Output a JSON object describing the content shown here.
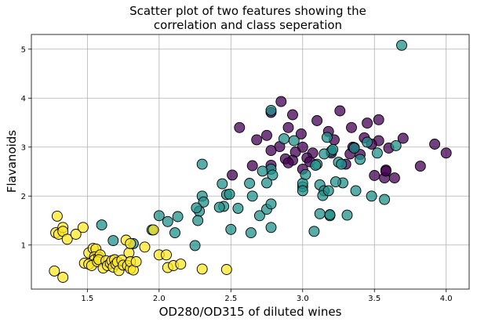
{
  "chart_data": {
    "type": "scatter",
    "title_line1": "Scatter plot of two features showing the",
    "title_line2": "correlation and class seperation",
    "xlabel": "OD280/OD315 of diluted wines",
    "ylabel": "Flavanoids",
    "xlim": [
      1.11,
      4.16
    ],
    "ylim": [
      0.1,
      5.3
    ],
    "xticks": [
      1.5,
      2.0,
      2.5,
      3.0,
      3.5,
      4.0
    ],
    "xtick_labels": [
      "1.5",
      "2.0",
      "2.5",
      "3.0",
      "3.5",
      "4.0"
    ],
    "yticks": [
      1,
      2,
      3,
      4,
      5
    ],
    "ytick_labels": [
      "1",
      "2",
      "3",
      "4",
      "5"
    ],
    "grid": true,
    "colors": {
      "class0": "#440154",
      "class1": "#21918c",
      "class2": "#fde725"
    },
    "series": [
      {
        "color": "#440154",
        "points": [
          [
            2.85,
            3.93
          ],
          [
            2.93,
            3.66
          ],
          [
            2.78,
            3.71
          ],
          [
            3.26,
            3.74
          ],
          [
            3.53,
            3.56
          ],
          [
            3.1,
            3.54
          ],
          [
            2.56,
            3.4
          ],
          [
            2.9,
            3.4
          ],
          [
            3.34,
            3.4
          ],
          [
            3.45,
            3.49
          ],
          [
            2.99,
            3.27
          ],
          [
            3.18,
            3.32
          ],
          [
            2.75,
            3.24
          ],
          [
            2.68,
            3.15
          ],
          [
            3.22,
            3.15
          ],
          [
            3.43,
            3.19
          ],
          [
            3.53,
            3.13
          ],
          [
            3.48,
            3.06
          ],
          [
            3.7,
            3.18
          ],
          [
            3.92,
            3.06
          ],
          [
            2.84,
            3.01
          ],
          [
            3.0,
            3.0
          ],
          [
            3.35,
            3.0
          ],
          [
            3.6,
            2.98
          ],
          [
            3.2,
            2.88
          ],
          [
            2.78,
            2.93
          ],
          [
            2.95,
            2.9
          ],
          [
            3.07,
            2.88
          ],
          [
            3.36,
            2.99
          ],
          [
            2.88,
            2.76
          ],
          [
            2.93,
            2.73
          ],
          [
            3.03,
            2.78
          ],
          [
            3.33,
            2.86
          ],
          [
            2.9,
            2.68
          ],
          [
            3.05,
            2.7
          ],
          [
            3.0,
            2.55
          ],
          [
            2.78,
            2.63
          ],
          [
            2.65,
            2.62
          ],
          [
            3.3,
            2.65
          ],
          [
            3.4,
            2.85
          ],
          [
            3.58,
            2.53
          ],
          [
            3.57,
            2.37
          ],
          [
            3.64,
            2.37
          ],
          [
            3.5,
            2.42
          ],
          [
            3.82,
            2.61
          ],
          [
            4.0,
            2.88
          ],
          [
            2.51,
            2.43
          ],
          [
            3.58,
            2.51
          ]
        ]
      },
      {
        "color": "#21918c",
        "points": [
          [
            3.69,
            5.08
          ],
          [
            2.78,
            3.75
          ],
          [
            2.87,
            3.17
          ],
          [
            2.94,
            3.13
          ],
          [
            3.17,
            3.2
          ],
          [
            3.65,
            3.03
          ],
          [
            3.45,
            3.1
          ],
          [
            3.52,
            2.88
          ],
          [
            3.36,
            2.98
          ],
          [
            3.2,
            2.92
          ],
          [
            3.15,
            2.86
          ],
          [
            3.25,
            2.69
          ],
          [
            3.4,
            2.75
          ],
          [
            3.27,
            2.65
          ],
          [
            3.1,
            2.65
          ],
          [
            2.78,
            2.55
          ],
          [
            2.72,
            2.51
          ],
          [
            2.79,
            2.43
          ],
          [
            2.75,
            2.27
          ],
          [
            2.65,
            2.0
          ],
          [
            2.7,
            1.6
          ],
          [
            2.75,
            1.73
          ],
          [
            2.78,
            1.84
          ],
          [
            2.63,
            2.26
          ],
          [
            2.55,
            1.75
          ],
          [
            2.47,
            2.03
          ],
          [
            2.49,
            2.04
          ],
          [
            2.45,
            1.79
          ],
          [
            2.42,
            1.77
          ],
          [
            2.44,
            2.25
          ],
          [
            2.3,
            2.65
          ],
          [
            2.3,
            2.0
          ],
          [
            2.31,
            1.88
          ],
          [
            2.28,
            1.69
          ],
          [
            2.26,
            1.76
          ],
          [
            2.27,
            1.5
          ],
          [
            2.25,
            0.99
          ],
          [
            2.13,
            1.58
          ],
          [
            2.06,
            1.48
          ],
          [
            2.11,
            1.25
          ],
          [
            2.0,
            1.6
          ],
          [
            1.95,
            1.31
          ],
          [
            1.82,
            1.03
          ],
          [
            1.68,
            1.09
          ],
          [
            1.6,
            1.41
          ],
          [
            2.5,
            1.32
          ],
          [
            2.64,
            1.25
          ],
          [
            2.78,
            1.36
          ],
          [
            3.0,
            2.19
          ],
          [
            3.0,
            2.26
          ],
          [
            3.0,
            2.11
          ],
          [
            3.12,
            2.23
          ],
          [
            3.15,
            2.11
          ],
          [
            3.14,
            2.01
          ],
          [
            3.18,
            2.11
          ],
          [
            3.19,
            1.6
          ],
          [
            3.19,
            1.62
          ],
          [
            3.12,
            1.64
          ],
          [
            3.08,
            1.28
          ],
          [
            3.31,
            1.61
          ],
          [
            3.37,
            2.11
          ],
          [
            3.48,
            2.0
          ],
          [
            3.57,
            1.93
          ],
          [
            3.28,
            2.27
          ],
          [
            3.23,
            2.29
          ],
          [
            3.21,
            2.95
          ],
          [
            3.09,
            2.63
          ],
          [
            3.02,
            2.44
          ]
        ]
      },
      {
        "color": "#fde725",
        "points": [
          [
            1.29,
            1.59
          ],
          [
            1.28,
            1.25
          ],
          [
            1.3,
            1.22
          ],
          [
            1.33,
            1.36
          ],
          [
            1.33,
            1.28
          ],
          [
            1.36,
            1.12
          ],
          [
            1.42,
            1.22
          ],
          [
            1.47,
            1.36
          ],
          [
            1.27,
            0.47
          ],
          [
            1.33,
            0.34
          ],
          [
            1.48,
            0.63
          ],
          [
            1.51,
            0.84
          ],
          [
            1.54,
            0.93
          ],
          [
            1.56,
            0.92
          ],
          [
            1.55,
            0.76
          ],
          [
            1.55,
            0.7
          ],
          [
            1.58,
            0.75
          ],
          [
            1.59,
            0.8
          ],
          [
            1.51,
            0.61
          ],
          [
            1.53,
            0.58
          ],
          [
            1.57,
            0.66
          ],
          [
            1.58,
            0.7
          ],
          [
            1.61,
            0.53
          ],
          [
            1.63,
            0.68
          ],
          [
            1.64,
            0.58
          ],
          [
            1.66,
            0.63
          ],
          [
            1.67,
            0.68
          ],
          [
            1.68,
            0.55
          ],
          [
            1.69,
            0.7
          ],
          [
            1.7,
            0.61
          ],
          [
            1.71,
            0.65
          ],
          [
            1.72,
            0.48
          ],
          [
            1.74,
            0.69
          ],
          [
            1.75,
            0.59
          ],
          [
            1.78,
            0.58
          ],
          [
            1.79,
            0.84
          ],
          [
            1.8,
            0.52
          ],
          [
            1.8,
            0.66
          ],
          [
            1.82,
            0.49
          ],
          [
            1.84,
            0.66
          ],
          [
            1.77,
            1.1
          ],
          [
            1.8,
            1.03
          ],
          [
            1.9,
            0.96
          ],
          [
            1.96,
            1.31
          ],
          [
            2.0,
            0.8
          ],
          [
            2.05,
            0.8
          ],
          [
            2.06,
            0.54
          ],
          [
            2.1,
            0.58
          ],
          [
            2.15,
            0.61
          ],
          [
            2.3,
            0.51
          ],
          [
            2.47,
            0.5
          ]
        ]
      }
    ]
  }
}
